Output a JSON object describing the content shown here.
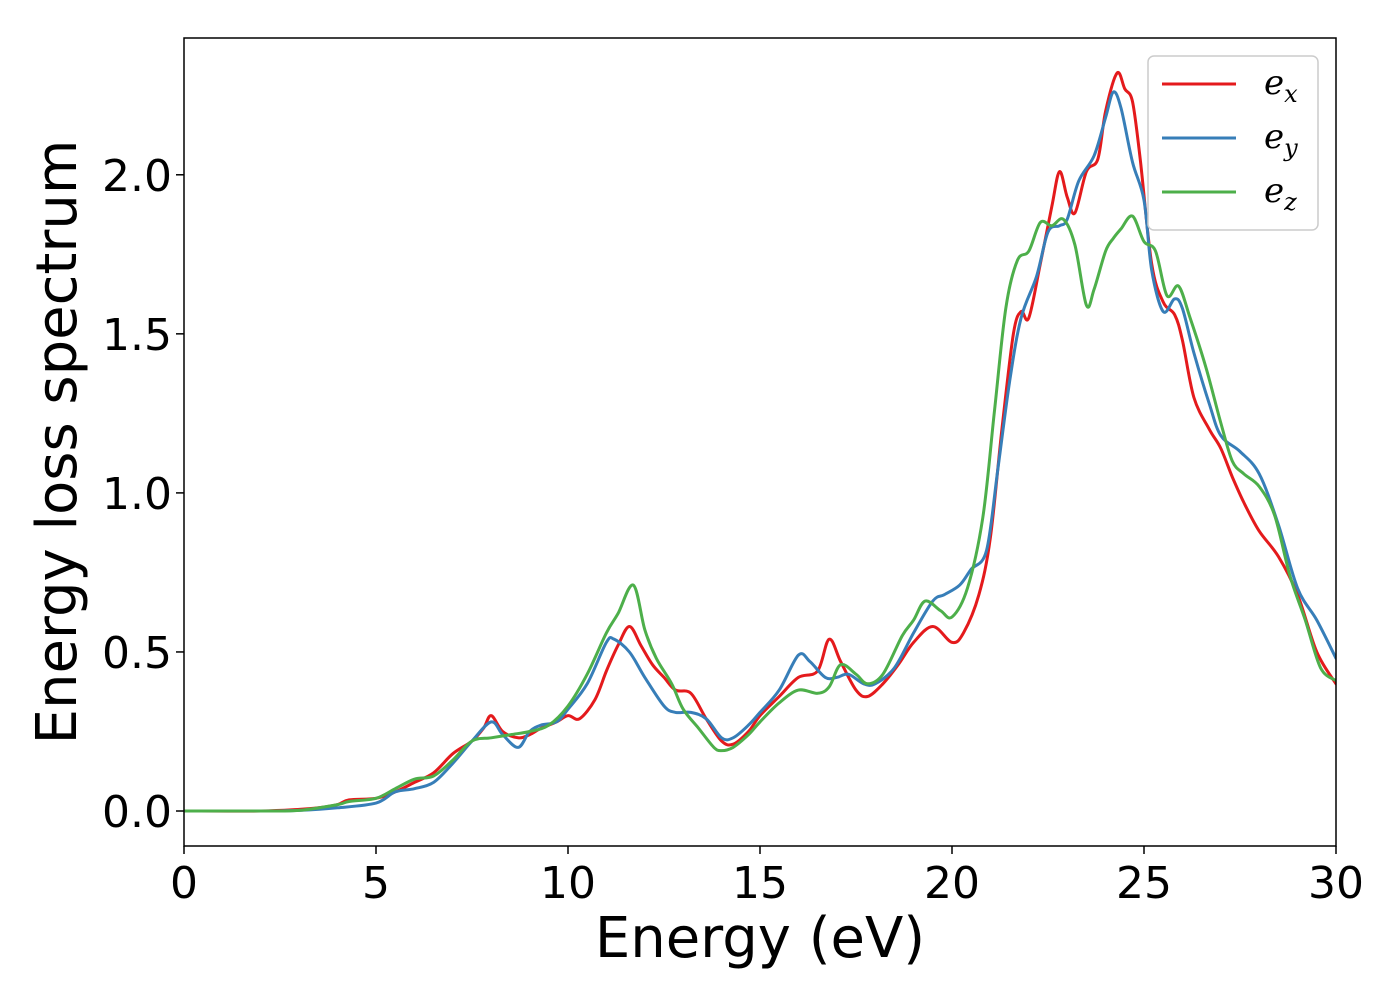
{
  "chart_data": {
    "type": "line",
    "xlabel": "Energy (eV)",
    "ylabel": "Energy loss spectrum",
    "xlim": [
      0,
      30
    ],
    "ylim": [
      -0.11,
      2.43
    ],
    "x_ticks": [
      0,
      5,
      10,
      15,
      20,
      25,
      30
    ],
    "x_tick_labels": [
      "0",
      "5",
      "10",
      "15",
      "20",
      "25",
      "30"
    ],
    "y_ticks": [
      0.0,
      0.5,
      1.0,
      1.5,
      2.0
    ],
    "y_tick_labels": [
      "0.0",
      "0.5",
      "1.0",
      "1.5",
      "2.0"
    ],
    "grid": false,
    "legend": "top-right",
    "series": [
      {
        "name": "e",
        "subscript": "x",
        "color": "#e41a1c",
        "points": [
          [
            0,
            0
          ],
          [
            2,
            0
          ],
          [
            3,
            0.005
          ],
          [
            3.5,
            0.01
          ],
          [
            4,
            0.02
          ],
          [
            4.3,
            0.035
          ],
          [
            5,
            0.04
          ],
          [
            5.5,
            0.06
          ],
          [
            6,
            0.09
          ],
          [
            6.5,
            0.12
          ],
          [
            7,
            0.18
          ],
          [
            7.5,
            0.22
          ],
          [
            7.8,
            0.26
          ],
          [
            8,
            0.3
          ],
          [
            8.3,
            0.25
          ],
          [
            8.7,
            0.23
          ],
          [
            9,
            0.24
          ],
          [
            9.3,
            0.26
          ],
          [
            9.7,
            0.28
          ],
          [
            10,
            0.3
          ],
          [
            10.3,
            0.29
          ],
          [
            10.7,
            0.35
          ],
          [
            11,
            0.44
          ],
          [
            11.3,
            0.52
          ],
          [
            11.6,
            0.58
          ],
          [
            11.9,
            0.52
          ],
          [
            12.2,
            0.46
          ],
          [
            12.5,
            0.42
          ],
          [
            12.8,
            0.38
          ],
          [
            13.2,
            0.37
          ],
          [
            13.6,
            0.29
          ],
          [
            14,
            0.22
          ],
          [
            14.3,
            0.21
          ],
          [
            14.7,
            0.25
          ],
          [
            15,
            0.3
          ],
          [
            15.5,
            0.36
          ],
          [
            16,
            0.42
          ],
          [
            16.5,
            0.44
          ],
          [
            16.8,
            0.54
          ],
          [
            17.1,
            0.47
          ],
          [
            17.5,
            0.38
          ],
          [
            17.8,
            0.36
          ],
          [
            18.2,
            0.4
          ],
          [
            18.6,
            0.46
          ],
          [
            19,
            0.53
          ],
          [
            19.5,
            0.58
          ],
          [
            20,
            0.53
          ],
          [
            20.3,
            0.56
          ],
          [
            20.7,
            0.68
          ],
          [
            21,
            0.86
          ],
          [
            21.3,
            1.2
          ],
          [
            21.6,
            1.5
          ],
          [
            21.8,
            1.57
          ],
          [
            22,
            1.55
          ],
          [
            22.3,
            1.72
          ],
          [
            22.6,
            1.9
          ],
          [
            22.8,
            2.01
          ],
          [
            23,
            1.93
          ],
          [
            23.2,
            1.88
          ],
          [
            23.5,
            2.01
          ],
          [
            23.8,
            2.05
          ],
          [
            24,
            2.2
          ],
          [
            24.3,
            2.32
          ],
          [
            24.5,
            2.27
          ],
          [
            24.7,
            2.23
          ],
          [
            24.9,
            2.05
          ],
          [
            25.2,
            1.72
          ],
          [
            25.5,
            1.6
          ],
          [
            25.8,
            1.56
          ],
          [
            26,
            1.48
          ],
          [
            26.3,
            1.3
          ],
          [
            26.7,
            1.2
          ],
          [
            27,
            1.14
          ],
          [
            27.3,
            1.05
          ],
          [
            27.6,
            0.97
          ],
          [
            28,
            0.88
          ],
          [
            28.5,
            0.8
          ],
          [
            29,
            0.68
          ],
          [
            29.5,
            0.5
          ],
          [
            30,
            0.4
          ]
        ]
      },
      {
        "name": "e",
        "subscript": "y",
        "color": "#377eb8",
        "points": [
          [
            0,
            0
          ],
          [
            2,
            0
          ],
          [
            3,
            0.002
          ],
          [
            4,
            0.01
          ],
          [
            5,
            0.025
          ],
          [
            5.5,
            0.06
          ],
          [
            6,
            0.07
          ],
          [
            6.5,
            0.09
          ],
          [
            7,
            0.15
          ],
          [
            7.5,
            0.22
          ],
          [
            8,
            0.28
          ],
          [
            8.3,
            0.24
          ],
          [
            8.7,
            0.2
          ],
          [
            9,
            0.25
          ],
          [
            9.3,
            0.27
          ],
          [
            9.7,
            0.28
          ],
          [
            10,
            0.32
          ],
          [
            10.5,
            0.4
          ],
          [
            11,
            0.53
          ],
          [
            11.2,
            0.54
          ],
          [
            11.6,
            0.5
          ],
          [
            12,
            0.42
          ],
          [
            12.5,
            0.33
          ],
          [
            12.8,
            0.31
          ],
          [
            13.2,
            0.31
          ],
          [
            13.6,
            0.29
          ],
          [
            14,
            0.23
          ],
          [
            14.3,
            0.23
          ],
          [
            14.7,
            0.27
          ],
          [
            15,
            0.31
          ],
          [
            15.5,
            0.38
          ],
          [
            16,
            0.49
          ],
          [
            16.3,
            0.47
          ],
          [
            16.7,
            0.42
          ],
          [
            17,
            0.42
          ],
          [
            17.3,
            0.43
          ],
          [
            17.7,
            0.4
          ],
          [
            18,
            0.4
          ],
          [
            18.5,
            0.45
          ],
          [
            19,
            0.56
          ],
          [
            19.5,
            0.66
          ],
          [
            19.8,
            0.68
          ],
          [
            20.2,
            0.71
          ],
          [
            20.5,
            0.76
          ],
          [
            20.9,
            0.82
          ],
          [
            21.2,
            1.08
          ],
          [
            21.5,
            1.35
          ],
          [
            21.8,
            1.55
          ],
          [
            22.2,
            1.68
          ],
          [
            22.5,
            1.82
          ],
          [
            22.8,
            1.84
          ],
          [
            23,
            1.86
          ],
          [
            23.3,
            1.98
          ],
          [
            23.7,
            2.06
          ],
          [
            24,
            2.18
          ],
          [
            24.2,
            2.26
          ],
          [
            24.4,
            2.21
          ],
          [
            24.7,
            2.04
          ],
          [
            25,
            1.92
          ],
          [
            25.2,
            1.7
          ],
          [
            25.5,
            1.57
          ],
          [
            25.8,
            1.61
          ],
          [
            26,
            1.58
          ],
          [
            26.3,
            1.44
          ],
          [
            26.7,
            1.28
          ],
          [
            27,
            1.18
          ],
          [
            27.5,
            1.13
          ],
          [
            28,
            1.06
          ],
          [
            28.5,
            0.9
          ],
          [
            29,
            0.7
          ],
          [
            29.5,
            0.6
          ],
          [
            30,
            0.48
          ]
        ]
      },
      {
        "name": "e",
        "subscript": "z",
        "color": "#4daf4a",
        "points": [
          [
            0,
            0
          ],
          [
            2,
            0
          ],
          [
            3,
            0.002
          ],
          [
            4,
            0.02
          ],
          [
            4.3,
            0.03
          ],
          [
            5,
            0.04
          ],
          [
            5.5,
            0.07
          ],
          [
            6,
            0.1
          ],
          [
            6.5,
            0.11
          ],
          [
            7,
            0.16
          ],
          [
            7.5,
            0.22
          ],
          [
            8,
            0.23
          ],
          [
            8.5,
            0.24
          ],
          [
            9,
            0.25
          ],
          [
            9.5,
            0.27
          ],
          [
            10,
            0.33
          ],
          [
            10.5,
            0.43
          ],
          [
            11,
            0.56
          ],
          [
            11.3,
            0.62
          ],
          [
            11.7,
            0.71
          ],
          [
            12,
            0.57
          ],
          [
            12.3,
            0.48
          ],
          [
            12.7,
            0.4
          ],
          [
            13,
            0.32
          ],
          [
            13.4,
            0.26
          ],
          [
            13.8,
            0.2
          ],
          [
            14,
            0.19
          ],
          [
            14.3,
            0.2
          ],
          [
            14.7,
            0.24
          ],
          [
            15,
            0.28
          ],
          [
            15.5,
            0.34
          ],
          [
            16,
            0.38
          ],
          [
            16.5,
            0.37
          ],
          [
            16.8,
            0.39
          ],
          [
            17.1,
            0.46
          ],
          [
            17.5,
            0.43
          ],
          [
            17.8,
            0.4
          ],
          [
            18.2,
            0.43
          ],
          [
            18.7,
            0.55
          ],
          [
            19,
            0.6
          ],
          [
            19.3,
            0.66
          ],
          [
            19.7,
            0.63
          ],
          [
            20,
            0.61
          ],
          [
            20.4,
            0.7
          ],
          [
            20.8,
            0.92
          ],
          [
            21.1,
            1.25
          ],
          [
            21.4,
            1.58
          ],
          [
            21.7,
            1.73
          ],
          [
            22,
            1.76
          ],
          [
            22.3,
            1.85
          ],
          [
            22.6,
            1.84
          ],
          [
            22.9,
            1.86
          ],
          [
            23.2,
            1.78
          ],
          [
            23.5,
            1.59
          ],
          [
            23.7,
            1.64
          ],
          [
            24,
            1.76
          ],
          [
            24.2,
            1.8
          ],
          [
            24.4,
            1.83
          ],
          [
            24.7,
            1.87
          ],
          [
            25,
            1.79
          ],
          [
            25.3,
            1.76
          ],
          [
            25.6,
            1.62
          ],
          [
            25.9,
            1.65
          ],
          [
            26.2,
            1.55
          ],
          [
            26.6,
            1.4
          ],
          [
            27,
            1.22
          ],
          [
            27.3,
            1.1
          ],
          [
            27.6,
            1.06
          ],
          [
            28,
            1.02
          ],
          [
            28.4,
            0.93
          ],
          [
            28.8,
            0.74
          ],
          [
            29.2,
            0.6
          ],
          [
            29.6,
            0.45
          ],
          [
            30,
            0.41
          ]
        ]
      }
    ]
  }
}
